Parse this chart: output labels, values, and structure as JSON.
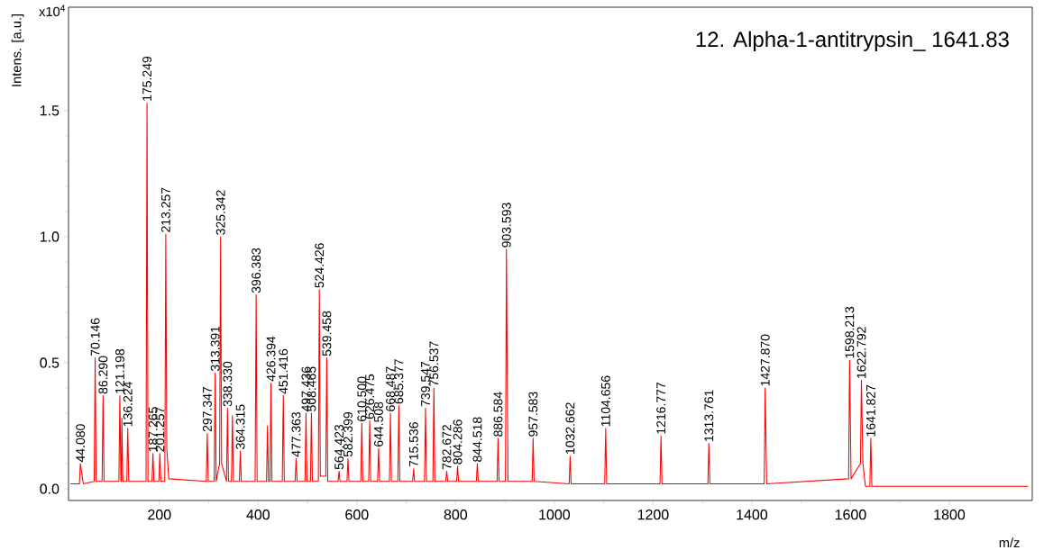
{
  "chart_data": {
    "type": "line",
    "title": "12. Alpha-1-antitrypsin_ 1641.83",
    "xlabel": "m/z",
    "ylabel": "Intens. [a.u.]",
    "xlim": [
      16,
      1968
    ],
    "ylim": [
      -0.046,
      1.91
    ],
    "xticks": [
      200,
      400,
      600,
      800,
      1000,
      1200,
      1400,
      1600,
      1800
    ],
    "yticks": [
      {
        "value": 0,
        "label": "0.0"
      },
      {
        "value": 0.5,
        "label": "0.5"
      },
      {
        "value": 1.0,
        "label": "1.0"
      },
      {
        "value": 1.5,
        "label": "1.5"
      }
    ],
    "series": [
      {
        "color": "#ff0000",
        "x": [
          20,
          38,
          40,
          46,
          68,
          70,
          72,
          84,
          86,
          88,
          118,
          120,
          122,
          123,
          124,
          126,
          134,
          136,
          138,
          173,
          175,
          177,
          185,
          187,
          189,
          199,
          201,
          203,
          211,
          213,
          215,
          219,
          295,
          297,
          299,
          311,
          313,
          315,
          322,
          324,
          326,
          336,
          338,
          340,
          346,
          348,
          350,
          362,
          364,
          366,
          394,
          396,
          398,
          417,
          419,
          421,
          424,
          426,
          428,
          449,
          451,
          453,
          475,
          477,
          479,
          495,
          497,
          499,
          506,
          508,
          510,
          522,
          524,
          526,
          537,
          539,
          541,
          562,
          564,
          566,
          580,
          582,
          584,
          608,
          610,
          612,
          624,
          626,
          628,
          642,
          644,
          646,
          666,
          668,
          670,
          683,
          685,
          687,
          713,
          715,
          717,
          737,
          739,
          741,
          754,
          756,
          758,
          780,
          782,
          784,
          802,
          804,
          806,
          842,
          844,
          846,
          884,
          886,
          888,
          901,
          903,
          906,
          955,
          957,
          959,
          1030,
          1032,
          1034,
          1102,
          1104,
          1106,
          1214,
          1216,
          1218,
          1311,
          1313,
          1315,
          1425,
          1427,
          1430,
          1596,
          1598,
          1601,
          1620,
          1622,
          1625,
          1630,
          1639,
          1641,
          1643,
          1960
        ],
        "values": [
          0.02,
          0.02,
          0.1,
          0.02,
          0.03,
          0.52,
          0.03,
          0.03,
          0.37,
          0.03,
          0.03,
          0.37,
          0.03,
          0.03,
          0.28,
          0.03,
          0.03,
          0.24,
          0.03,
          0.03,
          1.53,
          0.03,
          0.03,
          0.14,
          0.03,
          0.03,
          0.14,
          0.03,
          0.03,
          1.01,
          0.16,
          0.04,
          0.03,
          0.22,
          0.03,
          0.03,
          0.46,
          0.03,
          0.1,
          1.0,
          0.1,
          0.03,
          0.32,
          0.03,
          0.03,
          0.29,
          0.03,
          0.03,
          0.15,
          0.03,
          0.03,
          0.77,
          0.03,
          0.03,
          0.25,
          0.03,
          0.03,
          0.42,
          0.03,
          0.03,
          0.37,
          0.03,
          0.03,
          0.12,
          0.03,
          0.03,
          0.3,
          0.03,
          0.03,
          0.3,
          0.03,
          0.03,
          0.79,
          0.05,
          0.05,
          0.52,
          0.03,
          0.03,
          0.07,
          0.03,
          0.03,
          0.12,
          0.03,
          0.03,
          0.26,
          0.03,
          0.03,
          0.27,
          0.03,
          0.03,
          0.16,
          0.03,
          0.03,
          0.3,
          0.03,
          0.03,
          0.33,
          0.03,
          0.03,
          0.08,
          0.03,
          0.03,
          0.32,
          0.03,
          0.03,
          0.4,
          0.03,
          0.03,
          0.07,
          0.03,
          0.03,
          0.09,
          0.03,
          0.03,
          0.1,
          0.03,
          0.03,
          0.2,
          0.03,
          0.03,
          0.95,
          0.03,
          0.03,
          0.2,
          0.03,
          0.02,
          0.13,
          0.02,
          0.02,
          0.24,
          0.02,
          0.02,
          0.21,
          0.02,
          0.02,
          0.18,
          0.02,
          0.02,
          0.4,
          0.02,
          0.04,
          0.51,
          0.04,
          0.1,
          0.43,
          0.1,
          0.01,
          0.01,
          0.2,
          0.01,
          0.01
        ]
      }
    ],
    "annotations": [
      "x10$^{4}$",
      {
        "text": "44.080",
        "x": 40,
        "y": 0.1
      },
      {
        "text": "70.146",
        "x": 70,
        "y": 0.52
      },
      {
        "text": "86.290",
        "x": 86,
        "y": 0.37
      },
      {
        "text": "121.198",
        "x": 120,
        "y": 0.37
      },
      {
        "text": "136.224",
        "x": 136,
        "y": 0.24
      },
      {
        "text": "175.249",
        "x": 175,
        "y": 1.53
      },
      {
        "text": "187.265",
        "x": 187,
        "y": 0.14
      },
      {
        "text": "201.257",
        "x": 201,
        "y": 0.14
      },
      {
        "text": "213.257",
        "x": 213,
        "y": 1.01
      },
      {
        "text": "297.347",
        "x": 297,
        "y": 0.22
      },
      {
        "text": "313.391",
        "x": 313,
        "y": 0.46
      },
      {
        "text": "325.342",
        "x": 324,
        "y": 1.0
      },
      {
        "text": "338.330",
        "x": 338,
        "y": 0.32
      },
      {
        "text": "364.315",
        "x": 364,
        "y": 0.15
      },
      {
        "text": "396.383",
        "x": 396,
        "y": 0.77
      },
      {
        "text": "426.394",
        "x": 426,
        "y": 0.42
      },
      {
        "text": "451.416",
        "x": 451,
        "y": 0.37
      },
      {
        "text": "477.363",
        "x": 477,
        "y": 0.12
      },
      {
        "text": "497.436",
        "x": 497,
        "y": 0.3
      },
      {
        "text": "508.465",
        "x": 508,
        "y": 0.3
      },
      {
        "text": "524.426",
        "x": 524,
        "y": 0.79
      },
      {
        "text": "539.458",
        "x": 539,
        "y": 0.52
      },
      {
        "text": "564.423",
        "x": 564,
        "y": 0.07
      },
      {
        "text": "582.399",
        "x": 582,
        "y": 0.12
      },
      {
        "text": "610.500",
        "x": 610,
        "y": 0.26
      },
      {
        "text": "626.475",
        "x": 626,
        "y": 0.27
      },
      {
        "text": "644.508",
        "x": 644,
        "y": 0.16
      },
      {
        "text": "668.487",
        "x": 668,
        "y": 0.3
      },
      {
        "text": "685.377",
        "x": 685,
        "y": 0.33
      },
      {
        "text": "715.536",
        "x": 715,
        "y": 0.08
      },
      {
        "text": "739.547",
        "x": 739,
        "y": 0.32
      },
      {
        "text": "756.537",
        "x": 756,
        "y": 0.4
      },
      {
        "text": "782.672",
        "x": 782,
        "y": 0.07
      },
      {
        "text": "804.286",
        "x": 804,
        "y": 0.09
      },
      {
        "text": "844.518",
        "x": 844,
        "y": 0.1
      },
      {
        "text": "886.584",
        "x": 886,
        "y": 0.2
      },
      {
        "text": "903.593",
        "x": 903,
        "y": 0.95
      },
      {
        "text": "957.583",
        "x": 957,
        "y": 0.2
      },
      {
        "text": "1032.662",
        "x": 1032,
        "y": 0.13
      },
      {
        "text": "1104.656",
        "x": 1104,
        "y": 0.24
      },
      {
        "text": "1216.777",
        "x": 1216,
        "y": 0.21
      },
      {
        "text": "1313.761",
        "x": 1313,
        "y": 0.18
      },
      {
        "text": "1427.870",
        "x": 1427,
        "y": 0.4
      },
      {
        "text": "1598.213",
        "x": 1598,
        "y": 0.51
      },
      {
        "text": "1622.792",
        "x": 1622,
        "y": 0.43
      },
      {
        "text": "1641.827",
        "x": 1641,
        "y": 0.2
      }
    ]
  }
}
